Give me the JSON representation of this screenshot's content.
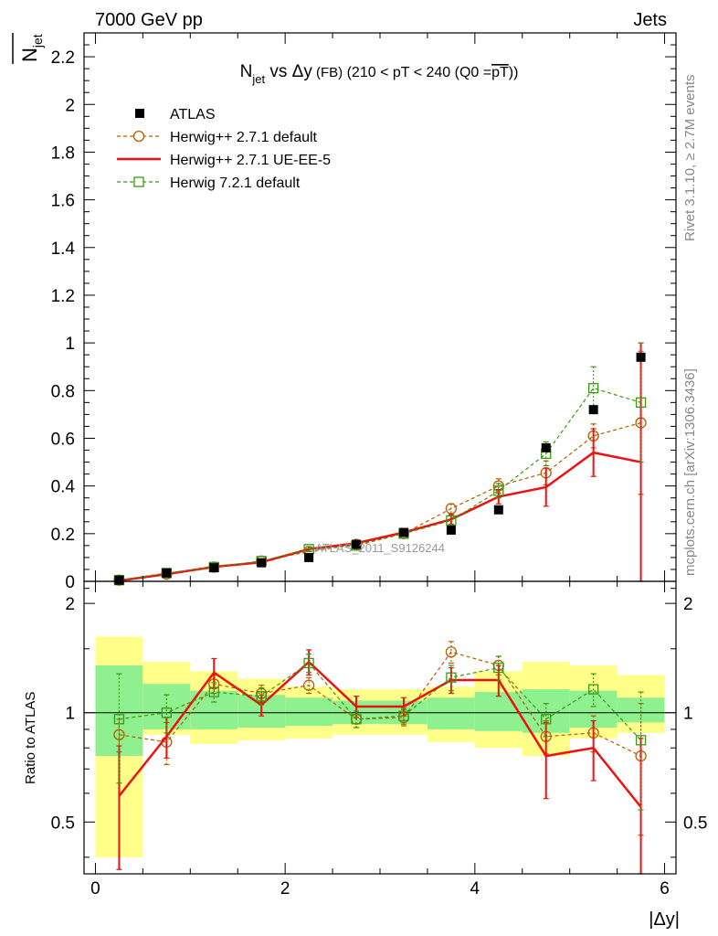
{
  "header": {
    "left": "7000 GeV pp",
    "right": "Jets"
  },
  "title": {
    "pre": "N",
    "sub": "jet",
    "mid": " vs ",
    "delta": "Δy",
    "fb": " (FB)",
    "post": " (210 < pT < 240 (Q0 =",
    "over": "pT",
    "close": "))"
  },
  "ylabel_main": {
    "n": "N",
    "sub": "jet"
  },
  "ylabel_ratio": "Ratio to ATLAS",
  "xlabel": "|Δy|",
  "side_text_top": "Rivet 3.1.10, ≥ 2.7M events",
  "side_text_bottom": "mcplots.cern.ch [arXiv:1306.3436]",
  "watermark": "ATLAS_2011_S9126244",
  "colors": {
    "atlas": "#000000",
    "herwigpp_default": "#b85c00",
    "herwigpp_ueee5": "#ee1111",
    "herwig7": "#3a9a10",
    "band_inner": "#8ff08f",
    "band_outer": "#ffff8a"
  },
  "chart_data": {
    "type": "scatter",
    "x": [
      0.25,
      0.75,
      1.25,
      1.75,
      2.25,
      2.75,
      3.25,
      3.75,
      4.25,
      4.75,
      5.25,
      5.75
    ],
    "main": {
      "ylim": [
        0,
        2.3
      ],
      "yticks": [
        0,
        0.2,
        0.4,
        0.6,
        0.8,
        1,
        1.2,
        1.4,
        1.6,
        1.8,
        2,
        2.2
      ],
      "ytick_labels": [
        "0",
        "0.2",
        "0.4",
        "0.6",
        "0.8",
        "1",
        "1.2",
        "1.4",
        "1.6",
        "1.8",
        "2",
        "2.2"
      ],
      "series": [
        {
          "name": "ATLAS",
          "key": "atlas",
          "style": "marker-square",
          "values": [
            0.005,
            0.035,
            0.057,
            0.078,
            0.1,
            0.155,
            0.205,
            0.215,
            0.3,
            0.56,
            0.72,
            0.94
          ]
        },
        {
          "name": "Herwig++ 2.7.1 default",
          "key": "herwigpp_default",
          "style": "dashed-circle",
          "values": [
            0.005,
            0.03,
            0.06,
            0.085,
            0.125,
            0.155,
            0.2,
            0.305,
            0.4,
            0.455,
            0.61,
            0.665
          ],
          "errors": [
            0.003,
            0.005,
            0.005,
            0.008,
            0.01,
            0.01,
            0.012,
            0.02,
            0.03,
            0.05,
            0.05,
            0.3
          ]
        },
        {
          "name": "Herwig++ 2.7.1 UE-EE-5",
          "key": "herwigpp_ueee5",
          "style": "solid",
          "values": [
            0.003,
            0.03,
            0.061,
            0.08,
            0.135,
            0.16,
            0.205,
            0.26,
            0.355,
            0.395,
            0.54,
            0.5
          ],
          "errors": [
            0.003,
            0.005,
            0.005,
            0.008,
            0.01,
            0.01,
            0.012,
            0.02,
            0.03,
            0.08,
            0.1,
            0.5
          ]
        },
        {
          "name": "Herwig 7.2.1 default",
          "key": "herwig7",
          "style": "dashed-square",
          "values": [
            0.005,
            0.035,
            0.06,
            0.085,
            0.135,
            0.15,
            0.2,
            0.255,
            0.38,
            0.535,
            0.81,
            0.75
          ],
          "errors": [
            0.003,
            0.005,
            0.005,
            0.008,
            0.01,
            0.01,
            0.012,
            0.02,
            0.03,
            0.05,
            0.09,
            0.25
          ]
        }
      ]
    },
    "ratio": {
      "ylabel": "Ratio to ATLAS",
      "scale": "log",
      "ylim": [
        0.36,
        2.3
      ],
      "yticks": [
        0.5,
        1,
        2
      ],
      "ytick_labels": [
        "0.5",
        "1",
        "2"
      ],
      "reference": 1,
      "bands": {
        "outer": [
          [
            0.4,
            1.62
          ],
          [
            0.87,
            1.38
          ],
          [
            0.82,
            1.3
          ],
          [
            0.84,
            1.24
          ],
          [
            0.85,
            1.18
          ],
          [
            0.87,
            1.16
          ],
          [
            0.87,
            1.16
          ],
          [
            0.83,
            1.18
          ],
          [
            0.8,
            1.3
          ],
          [
            0.76,
            1.38
          ],
          [
            0.85,
            1.35
          ],
          [
            0.88,
            1.27
          ]
        ],
        "inner": [
          [
            0.76,
            1.35
          ],
          [
            0.9,
            1.2
          ],
          [
            0.9,
            1.15
          ],
          [
            0.91,
            1.12
          ],
          [
            0.92,
            1.1
          ],
          [
            0.93,
            1.08
          ],
          [
            0.93,
            1.08
          ],
          [
            0.9,
            1.1
          ],
          [
            0.89,
            1.14
          ],
          [
            0.88,
            1.16
          ],
          [
            0.91,
            1.15
          ],
          [
            0.94,
            1.1
          ]
        ]
      },
      "series": [
        {
          "name": "Herwig++ 2.7.1 default",
          "key": "herwigpp_default",
          "style": "dashed-circle",
          "values": [
            0.87,
            0.83,
            1.2,
            1.13,
            1.19,
            0.96,
            0.97,
            1.47,
            1.35,
            0.86,
            0.88,
            0.76
          ],
          "errors": [
            0.09,
            0.11,
            0.07,
            0.06,
            0.06,
            0.05,
            0.05,
            0.1,
            0.08,
            0.09,
            0.1,
            0.3
          ]
        },
        {
          "name": "Herwig++ 2.7.1 UE-EE-5",
          "key": "herwigpp_ueee5",
          "style": "solid",
          "values": [
            0.59,
            0.86,
            1.29,
            1.05,
            1.38,
            1.04,
            1.04,
            1.23,
            1.23,
            0.76,
            0.8,
            0.55
          ],
          "errors": [
            0.22,
            0.11,
            0.12,
            0.07,
            0.11,
            0.07,
            0.06,
            0.1,
            0.12,
            0.18,
            0.15,
            0.3
          ]
        },
        {
          "name": "Herwig 7.2.1 default",
          "key": "herwig7",
          "style": "dashed-square",
          "values": [
            0.96,
            1.0,
            1.14,
            1.11,
            1.37,
            0.96,
            0.98,
            1.25,
            1.33,
            0.96,
            1.16,
            0.84
          ],
          "errors": [
            0.32,
            0.12,
            0.07,
            0.06,
            0.08,
            0.05,
            0.05,
            0.1,
            0.1,
            0.1,
            0.12,
            0.3
          ]
        }
      ]
    },
    "xlim": [
      -0.12,
      6.12
    ],
    "xticks": [
      0,
      2,
      4,
      6
    ],
    "xtick_labels": [
      "0",
      "2",
      "4",
      "6"
    ],
    "xlabel": "|Δy|",
    "legend": {
      "placement": "top-left",
      "entries": [
        "ATLAS",
        "Herwig++ 2.7.1 default",
        "Herwig++ 2.7.1 UE-EE-5",
        "Herwig 7.2.1 default"
      ]
    }
  }
}
